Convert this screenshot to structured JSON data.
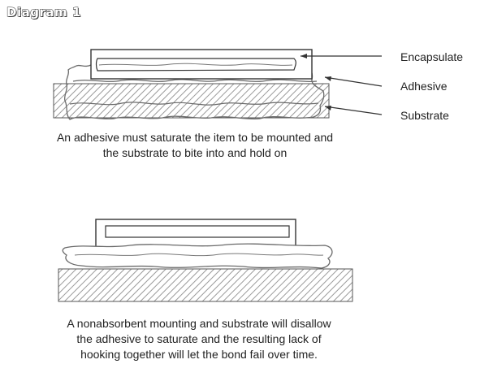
{
  "title": "Diagram 1",
  "labels": {
    "encapsulate": "Encapsulate",
    "adhesive": "Adhesive",
    "substrate": "Substrate"
  },
  "captions": {
    "top_line1": "An adhesive must saturate the item to be mounted and",
    "top_line2": "the substrate to bite into and hold on",
    "bottom_line1": "A nonabsorbent mounting and substrate will disallow",
    "bottom_line2": "the adhesive to saturate and the resulting lack of",
    "bottom_line3": "hooking together will let the bond fail over time."
  }
}
